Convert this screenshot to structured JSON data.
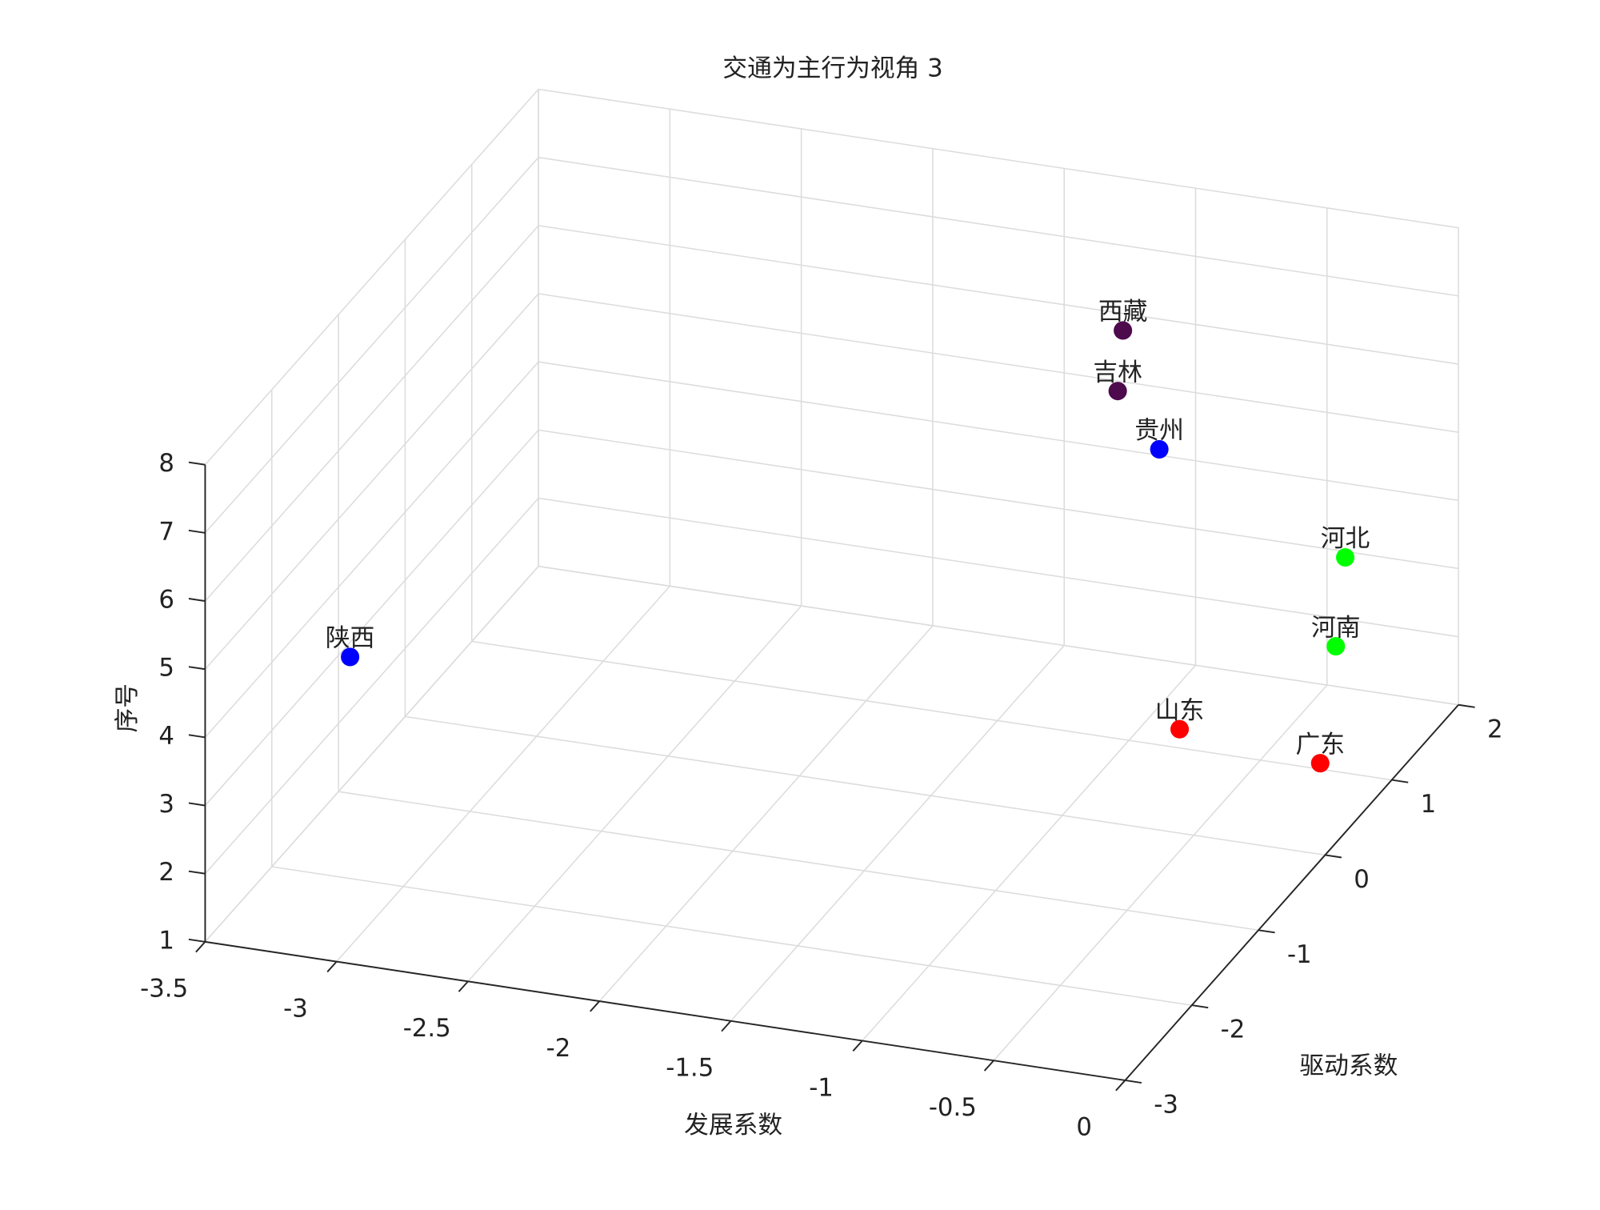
{
  "chart_data": {
    "type": "scatter3d",
    "title": "交通为主行为视角 3",
    "xlabel": "发展系数",
    "ylabel": "驱动系数",
    "zlabel": "序号",
    "labels": [
      "广东",
      "山东",
      "河南",
      "河北",
      "陕西",
      "贵州",
      "吉林",
      "西藏"
    ],
    "x": [
      -0.29,
      -0.66,
      -0.18,
      -0.21,
      -3.05,
      -0.75,
      -0.86,
      -0.82
    ],
    "y": [
      1.07,
      0.42,
      0.87,
      1.13,
      -2.6,
      0.47,
      0.28,
      0.2
    ],
    "z": [
      1,
      2,
      3,
      4,
      5,
      6,
      7,
      8
    ],
    "colors": [
      "#ff0000",
      "#ff0000",
      "#00ff00",
      "#00ff00",
      "#0000ff",
      "#0000ff",
      "#4d0a4d",
      "#4d0a4d"
    ],
    "xlim": [
      -3.5,
      0
    ],
    "xticks": [
      -3.5,
      -3,
      -2.5,
      -2,
      -1.5,
      -1,
      -0.5,
      0
    ],
    "ylim": [
      -3,
      2
    ],
    "yticks": [
      -3,
      -2,
      -1,
      0,
      1,
      2
    ],
    "zlim": [
      1,
      8
    ],
    "zticks": [
      1,
      2,
      3,
      4,
      5,
      6,
      7,
      8
    ],
    "grid": true
  }
}
